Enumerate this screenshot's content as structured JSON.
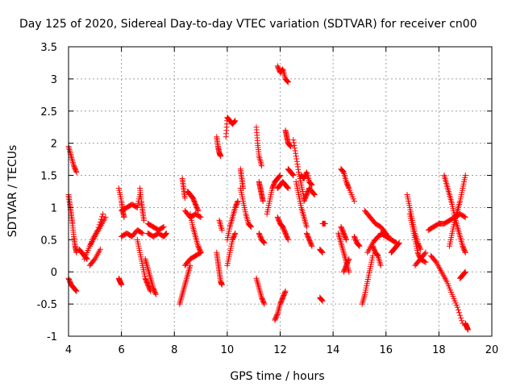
{
  "chart_data": {
    "type": "scatter",
    "title": "Day 125 of 2020, Sidereal Day-to-day VTEC variation (SDTVAR) for receiver cn00",
    "xlabel": "GPS time / hours",
    "ylabel": "SDTVAR / TECUs",
    "xlim": [
      4,
      20
    ],
    "ylim": [
      -1,
      3.5
    ],
    "xticks": [
      4,
      6,
      8,
      10,
      12,
      14,
      16,
      18,
      20
    ],
    "yticks": [
      -1,
      -0.5,
      0,
      0.5,
      1,
      1.5,
      2,
      2.5,
      3,
      3.5
    ],
    "grid": true,
    "marker": "+",
    "color": "#ff0000",
    "series": [
      {
        "name": "SDTVAR",
        "tracks": [
          {
            "x": [
              4.0,
              4.1,
              4.2,
              4.3
            ],
            "y": [
              1.95,
              1.8,
              1.65,
              1.55
            ]
          },
          {
            "x": [
              4.0,
              4.05,
              4.1,
              4.15,
              4.2,
              4.25,
              4.3
            ],
            "y": [
              1.2,
              1.05,
              0.9,
              0.75,
              0.55,
              0.4,
              0.3
            ]
          },
          {
            "x": [
              4.0,
              4.1,
              4.2,
              4.3
            ],
            "y": [
              -0.1,
              -0.2,
              -0.25,
              -0.3
            ]
          },
          {
            "x": [
              4.4,
              4.5,
              4.6,
              4.7
            ],
            "y": [
              0.35,
              0.3,
              0.25,
              0.2
            ]
          },
          {
            "x": [
              4.6,
              4.8,
              5.0,
              5.2,
              5.4
            ],
            "y": [
              0.2,
              0.4,
              0.55,
              0.7,
              0.85
            ]
          },
          {
            "x": [
              4.7,
              4.9,
              5.1,
              5.3
            ],
            "y": [
              0.3,
              0.5,
              0.65,
              0.9
            ]
          },
          {
            "x": [
              4.8,
              5.0,
              5.2
            ],
            "y": [
              0.1,
              0.2,
              0.35
            ]
          },
          {
            "x": [
              5.9,
              6.0,
              6.05,
              6.1
            ],
            "y": [
              1.3,
              1.1,
              0.95,
              0.85
            ]
          },
          {
            "x": [
              5.9,
              5.95,
              6.0
            ],
            "y": [
              -0.1,
              -0.15,
              -0.2
            ]
          },
          {
            "x": [
              6.0,
              6.2,
              6.4,
              6.6,
              6.7
            ],
            "y": [
              0.95,
              1.0,
              1.05,
              1.0,
              1.2
            ]
          },
          {
            "x": [
              6.0,
              6.2,
              6.4,
              6.6,
              6.8
            ],
            "y": [
              0.55,
              0.6,
              0.55,
              0.65,
              0.6
            ]
          },
          {
            "x": [
              6.7,
              6.75,
              6.8,
              6.85
            ],
            "y": [
              1.3,
              1.1,
              0.95,
              0.8
            ]
          },
          {
            "x": [
              6.6,
              6.7,
              6.8,
              6.9,
              7.0,
              7.1
            ],
            "y": [
              0.5,
              0.3,
              0.1,
              -0.1,
              -0.2,
              -0.3
            ]
          },
          {
            "x": [
              6.9,
              7.0,
              7.1,
              7.2,
              7.3
            ],
            "y": [
              0.2,
              0.05,
              -0.1,
              -0.25,
              -0.35
            ]
          },
          {
            "x": [
              7.0,
              7.2,
              7.4,
              7.6,
              7.7
            ],
            "y": [
              0.6,
              0.55,
              0.6,
              0.55,
              0.6
            ]
          },
          {
            "x": [
              7.0,
              7.2,
              7.4,
              7.6
            ],
            "y": [
              0.75,
              0.7,
              0.65,
              0.7
            ]
          },
          {
            "x": [
              8.2,
              8.3,
              8.4,
              8.5,
              8.6
            ],
            "y": [
              -0.5,
              -0.35,
              -0.2,
              -0.05,
              0.1
            ]
          },
          {
            "x": [
              8.4,
              8.6,
              8.8,
              9.0
            ],
            "y": [
              0.1,
              0.2,
              0.25,
              0.3
            ]
          },
          {
            "x": [
              8.3,
              8.35,
              8.4
            ],
            "y": [
              1.45,
              1.3,
              1.15
            ]
          },
          {
            "x": [
              8.4,
              8.6,
              8.8,
              9.0
            ],
            "y": [
              0.95,
              0.85,
              0.9,
              0.85
            ]
          },
          {
            "x": [
              8.5,
              8.6,
              8.7,
              8.8,
              8.9
            ],
            "y": [
              1.25,
              1.2,
              1.15,
              1.05,
              0.95
            ]
          },
          {
            "x": [
              8.6,
              8.7,
              8.8,
              8.9,
              9.0
            ],
            "y": [
              0.9,
              0.7,
              0.55,
              0.4,
              0.3
            ]
          },
          {
            "x": [
              9.6,
              9.65,
              9.7,
              9.75
            ],
            "y": [
              2.1,
              1.95,
              1.85,
              1.8
            ]
          },
          {
            "x": [
              9.6,
              9.65,
              9.7,
              9.75,
              9.8
            ],
            "y": [
              0.3,
              0.15,
              0.0,
              -0.15,
              -0.2
            ]
          },
          {
            "x": [
              9.7,
              9.8
            ],
            "y": [
              0.8,
              0.65
            ]
          },
          {
            "x": [
              9.95,
              10.0,
              10.1,
              10.2,
              10.3
            ],
            "y": [
              2.1,
              2.4,
              2.35,
              2.3,
              2.35
            ]
          },
          {
            "x": [
              10.0,
              10.1,
              10.2,
              10.3,
              10.4
            ],
            "y": [
              0.5,
              0.7,
              0.85,
              1.0,
              1.1
            ]
          },
          {
            "x": [
              10.0,
              10.1,
              10.2,
              10.3
            ],
            "y": [
              0.1,
              0.3,
              0.5,
              0.6
            ]
          },
          {
            "x": [
              10.5,
              10.55,
              10.6
            ],
            "y": [
              1.6,
              1.45,
              1.3
            ]
          },
          {
            "x": [
              10.5,
              10.6,
              10.7,
              10.8,
              10.9
            ],
            "y": [
              1.3,
              1.1,
              0.9,
              0.75,
              0.7
            ]
          },
          {
            "x": [
              11.1,
              11.15,
              11.2,
              11.3
            ],
            "y": [
              2.25,
              2.0,
              1.8,
              1.65
            ]
          },
          {
            "x": [
              11.1,
              11.2,
              11.3,
              11.4
            ],
            "y": [
              -0.1,
              -0.25,
              -0.4,
              -0.5
            ]
          },
          {
            "x": [
              11.2,
              11.3,
              11.4
            ],
            "y": [
              0.6,
              0.5,
              0.45
            ]
          },
          {
            "x": [
              11.2,
              11.25,
              11.3,
              11.35
            ],
            "y": [
              1.4,
              1.3,
              1.2,
              1.1
            ]
          },
          {
            "x": [
              11.5,
              11.6,
              11.7,
              11.8,
              11.9,
              12.0
            ],
            "y": [
              0.9,
              1.1,
              1.3,
              1.4,
              1.45,
              1.5
            ]
          },
          {
            "x": [
              11.8,
              11.9,
              12.0,
              12.1,
              12.2
            ],
            "y": [
              -0.75,
              -0.65,
              -0.5,
              -0.4,
              -0.3
            ]
          },
          {
            "x": [
              11.9,
              12.0,
              12.1,
              12.2,
              12.3
            ],
            "y": [
              3.2,
              3.1,
              3.15,
              3.0,
              2.95
            ]
          },
          {
            "x": [
              11.9,
              12.0,
              12.1,
              12.2,
              12.3
            ],
            "y": [
              0.85,
              0.75,
              0.7,
              0.6,
              0.5
            ]
          },
          {
            "x": [
              11.9,
              12.0,
              12.1,
              12.2,
              12.3
            ],
            "y": [
              1.3,
              1.35,
              1.4,
              1.35,
              1.3
            ]
          },
          {
            "x": [
              12.2,
              12.25,
              12.3,
              12.4
            ],
            "y": [
              2.2,
              2.1,
              2.0,
              1.95
            ]
          },
          {
            "x": [
              12.3,
              12.4,
              12.5
            ],
            "y": [
              1.6,
              1.55,
              1.5
            ]
          },
          {
            "x": [
              12.5,
              12.6,
              12.7,
              12.8,
              12.9
            ],
            "y": [
              2.05,
              1.8,
              1.55,
              1.35,
              1.15
            ]
          },
          {
            "x": [
              12.6,
              12.7,
              12.8,
              12.9,
              13.0
            ],
            "y": [
              1.4,
              1.2,
              1.0,
              0.85,
              0.7
            ]
          },
          {
            "x": [
              12.8,
              12.9,
              13.0,
              13.1,
              13.2
            ],
            "y": [
              1.5,
              1.45,
              1.55,
              1.4,
              1.35
            ]
          },
          {
            "x": [
              12.9,
              13.0,
              13.1,
              13.2,
              13.3
            ],
            "y": [
              1.1,
              1.2,
              1.3,
              1.25,
              1.2
            ]
          },
          {
            "x": [
              13.0,
              13.1,
              13.2
            ],
            "y": [
              0.6,
              0.5,
              0.4
            ]
          },
          {
            "x": [
              13.5,
              13.6
            ],
            "y": [
              0.35,
              0.3
            ]
          },
          {
            "x": [
              13.6,
              13.7
            ],
            "y": [
              0.75,
              0.75
            ]
          },
          {
            "x": [
              13.5,
              13.6
            ],
            "y": [
              -0.4,
              -0.45
            ]
          },
          {
            "x": [
              14.2,
              14.3,
              14.4,
              14.5,
              14.6
            ],
            "y": [
              0.6,
              0.45,
              0.3,
              0.15,
              0.0
            ]
          },
          {
            "x": [
              14.3,
              14.4,
              14.5,
              14.6,
              14.8
            ],
            "y": [
              1.6,
              1.55,
              1.4,
              1.3,
              1.1
            ]
          },
          {
            "x": [
              14.3,
              14.4,
              14.5
            ],
            "y": [
              0.7,
              0.6,
              0.5
            ]
          },
          {
            "x": [
              14.4,
              14.5,
              14.6
            ],
            "y": [
              0.0,
              0.1,
              0.2
            ]
          },
          {
            "x": [
              14.8,
              14.9,
              15.0
            ],
            "y": [
              0.55,
              0.45,
              0.4
            ]
          },
          {
            "x": [
              15.1,
              15.2,
              15.3,
              15.4,
              15.5
            ],
            "y": [
              -0.5,
              -0.35,
              -0.15,
              0.05,
              0.25
            ]
          },
          {
            "x": [
              15.2,
              15.4,
              15.6,
              15.8,
              16.0
            ],
            "y": [
              0.95,
              0.85,
              0.75,
              0.7,
              0.6
            ]
          },
          {
            "x": [
              15.3,
              15.5,
              15.7,
              15.9,
              16.1
            ],
            "y": [
              0.3,
              0.45,
              0.55,
              0.6,
              0.55
            ]
          },
          {
            "x": [
              15.5,
              15.6,
              15.7,
              15.8
            ],
            "y": [
              0.4,
              0.3,
              0.25,
              0.1
            ]
          },
          {
            "x": [
              15.8,
              16.0,
              16.2,
              16.4
            ],
            "y": [
              0.6,
              0.55,
              0.5,
              0.45
            ]
          },
          {
            "x": [
              16.2,
              16.3,
              16.4,
              16.5
            ],
            "y": [
              0.3,
              0.35,
              0.4,
              0.45
            ]
          },
          {
            "x": [
              16.8,
              16.9,
              17.0,
              17.1,
              17.2,
              17.3
            ],
            "y": [
              1.2,
              1.0,
              0.8,
              0.6,
              0.45,
              0.35
            ]
          },
          {
            "x": [
              16.9,
              17.0,
              17.1,
              17.2,
              17.3,
              17.5
            ],
            "y": [
              0.9,
              0.7,
              0.5,
              0.3,
              0.2,
              0.15
            ]
          },
          {
            "x": [
              17.1,
              17.3,
              17.5
            ],
            "y": [
              0.1,
              0.2,
              0.3
            ]
          },
          {
            "x": [
              17.6,
              17.8,
              18.0,
              18.2,
              18.4,
              18.6,
              18.8,
              19.0
            ],
            "y": [
              0.65,
              0.7,
              0.75,
              0.75,
              0.8,
              0.85,
              0.9,
              0.85
            ]
          },
          {
            "x": [
              17.7,
              17.9,
              18.1,
              18.3,
              18.5,
              18.7,
              18.9
            ],
            "y": [
              0.25,
              0.15,
              0.0,
              -0.15,
              -0.35,
              -0.55,
              -0.8
            ]
          },
          {
            "x": [
              18.2,
              18.3,
              18.4,
              18.5,
              18.6,
              18.7,
              18.8,
              18.9,
              19.0
            ],
            "y": [
              1.5,
              1.35,
              1.2,
              1.05,
              0.85,
              0.7,
              0.55,
              0.4,
              0.3
            ]
          },
          {
            "x": [
              18.4,
              18.5,
              18.6,
              18.7,
              18.8,
              18.9,
              19.0
            ],
            "y": [
              0.4,
              0.6,
              0.8,
              0.95,
              1.1,
              1.3,
              1.5
            ]
          },
          {
            "x": [
              18.8,
              18.9,
              19.0
            ],
            "y": [
              -0.1,
              -0.05,
              0.0
            ]
          },
          {
            "x": [
              19.0,
              19.05,
              19.1
            ],
            "y": [
              -0.8,
              -0.85,
              -0.9
            ]
          }
        ]
      }
    ]
  }
}
